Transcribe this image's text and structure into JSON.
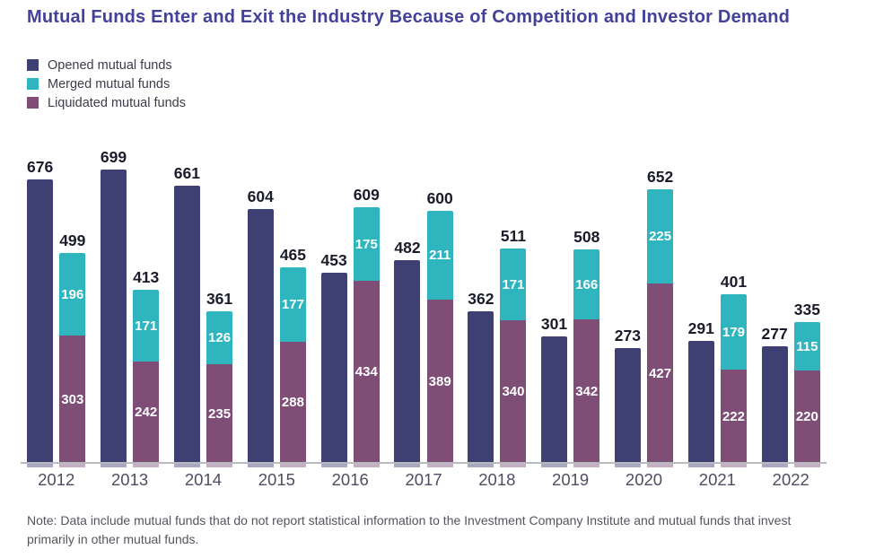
{
  "title": "Mutual Funds Enter and Exit the Industry Because of Competition and Investor Demand",
  "note": "Note: Data include mutual funds that do not report statistical information to the Investment Company Institute and mutual funds that invest primarily in other mutual funds.",
  "colors": {
    "title": "#42429b",
    "opened": "#3e4073",
    "merged": "#2fb5be",
    "liquidated": "#7f4e77",
    "axis_line": "#b9b9c0",
    "total_label": "#1b1c2b",
    "segment_label": "#ffffff",
    "year_label": "#4e4e62",
    "note_text": "#54545e",
    "legend_text": "#3b3b4b"
  },
  "chart_data": {
    "type": "bar",
    "title": "Mutual Funds Enter and Exit the Industry Because of Competition and Investor Demand",
    "categories": [
      "2012",
      "2013",
      "2014",
      "2015",
      "2016",
      "2017",
      "2018",
      "2019",
      "2020",
      "2021",
      "2022"
    ],
    "series": [
      {
        "name": "Opened mutual funds",
        "color": "#3e4073",
        "values": [
          676,
          699,
          661,
          604,
          453,
          482,
          362,
          301,
          273,
          291,
          277
        ]
      },
      {
        "name": "Merged mutual funds",
        "color": "#2fb5be",
        "values": [
          196,
          171,
          126,
          177,
          175,
          211,
          171,
          166,
          225,
          179,
          115
        ]
      },
      {
        "name": "Liquidated mutual funds",
        "color": "#7f4e77",
        "values": [
          303,
          242,
          235,
          288,
          434,
          389,
          340,
          342,
          427,
          222,
          220
        ]
      }
    ],
    "stacked_totals": [
      499,
      413,
      361,
      465,
      609,
      600,
      511,
      508,
      652,
      401,
      335
    ],
    "layout": "per year: standalone Opened bar labeled with its value; second bar stacks Merged (top) over Liquidated (bottom) labeled with their sum above and segment values inside",
    "xlabel": "",
    "ylabel": "",
    "ylim": [
      0,
      720
    ],
    "grid": false,
    "legend_position": "top-left"
  }
}
